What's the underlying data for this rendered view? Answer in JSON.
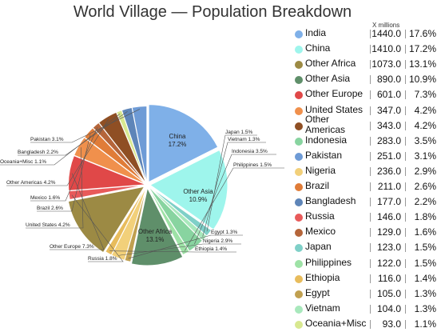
{
  "chart_data": {
    "type": "pie",
    "title": "World Village — Population Breakdown",
    "unit_label": "X millions",
    "legend_position": "right",
    "slices": [
      {
        "label": "India",
        "value": 1440.0,
        "value_text": "1440.0",
        "percent": "17.6%",
        "color": "#7fb0e8"
      },
      {
        "label": "China",
        "value": 1410.0,
        "value_text": "1410.0",
        "percent": "17.2%",
        "color": "#9ef5ec"
      },
      {
        "label": "Other Africa",
        "value": 1073.0,
        "value_text": "1073.0",
        "percent": "13.1%",
        "color": "#9c8a44"
      },
      {
        "label": "Other Asia",
        "value": 890.0,
        "value_text": "890.0",
        "percent": "10.9%",
        "color": "#5f8f6a"
      },
      {
        "label": "Other Europe",
        "value": 601.0,
        "value_text": "601.0",
        "percent": "7.3%",
        "color": "#e04848"
      },
      {
        "label": "United States",
        "value": 347.0,
        "value_text": "347.0",
        "percent": "4.2%",
        "color": "#f0904c"
      },
      {
        "label": "Other Americas",
        "value": 343.0,
        "value_text": "343.0",
        "percent": "4.2%",
        "color": "#8f4f24"
      },
      {
        "label": "Indonesia",
        "value": 283.0,
        "value_text": "283.0",
        "percent": "3.5%",
        "color": "#88d4a0"
      },
      {
        "label": "Pakistan",
        "value": 251.0,
        "value_text": "251.0",
        "percent": "3.1%",
        "color": "#6e9bd6"
      },
      {
        "label": "Nigeria",
        "value": 236.0,
        "value_text": "236.0",
        "percent": "2.9%",
        "color": "#f2d07a"
      },
      {
        "label": "Brazil",
        "value": 211.0,
        "value_text": "211.0",
        "percent": "2.6%",
        "color": "#e07c38"
      },
      {
        "label": "Bangladesh",
        "value": 177.0,
        "value_text": "177.0",
        "percent": "2.2%",
        "color": "#5e85b8"
      },
      {
        "label": "Russia",
        "value": 146.0,
        "value_text": "146.0",
        "percent": "1.8%",
        "color": "#e85a5a"
      },
      {
        "label": "Mexico",
        "value": 129.0,
        "value_text": "129.0",
        "percent": "1.6%",
        "color": "#b5653a"
      },
      {
        "label": "Japan",
        "value": 123.0,
        "value_text": "123.0",
        "percent": "1.5%",
        "color": "#7fd0c8"
      },
      {
        "label": "Philippines",
        "value": 122.0,
        "value_text": "122.0",
        "percent": "1.5%",
        "color": "#9ee2a6"
      },
      {
        "label": "Ethiopia",
        "value": 116.0,
        "value_text": "116.0",
        "percent": "1.4%",
        "color": "#e8bc5c"
      },
      {
        "label": "Egypt",
        "value": 105.0,
        "value_text": "105.0",
        "percent": "1.3%",
        "color": "#c0a050"
      },
      {
        "label": "Vietnam",
        "value": 104.0,
        "value_text": "104.0",
        "percent": "1.3%",
        "color": "#a8e8bc"
      },
      {
        "label": "Oceania+Misc",
        "value": 93.0,
        "value_text": "93.0",
        "percent": "1.1%",
        "color": "#d8e890"
      }
    ],
    "pie_labels": {
      "India": "India\n17.6%",
      "China": "China\n17.2%",
      "Other Africa": "Other Africa\n13.1%",
      "Other Asia": "Other Asia\n10.9%",
      "Other Europe": "Other Europe 7.3%",
      "United States": "United States 4.2%",
      "Other Americas": "Other Americas 4.2%",
      "Indonesia": "Indonesia 3.5%",
      "Pakistan": "Pakistan 3.1%",
      "Nigeria": "Nigeria 2.9%",
      "Brazil": "Brazil 2.6%",
      "Bangladesh": "Bangladesh 2.2%",
      "Russia": "Russia 1.8%",
      "Mexico": "Mexico 1.6%",
      "Japan": "Japan 1.5%",
      "Philippines": "Philippines 1.5%",
      "Ethiopia": "Ethiopia 1.4%",
      "Egypt": "Egypt 1.3%",
      "Vietnam": "Vietnam 1.3%",
      "Oceania+Misc": "Oceania+Misc 1.1%"
    },
    "legend_order": [
      "India",
      "China",
      "Other Africa",
      "Other Asia",
      "Other Europe",
      "United States",
      "Other Americas",
      "Indonesia",
      "Pakistan",
      "Nigeria",
      "Brazil",
      "Bangladesh",
      "Russia",
      "Mexico",
      "Japan",
      "Philippines",
      "Ethiopia",
      "Egypt",
      "Vietnam",
      "Oceania+Misc"
    ],
    "two_line_legend": {
      "Other Americas": "Other\nAmericas"
    }
  }
}
